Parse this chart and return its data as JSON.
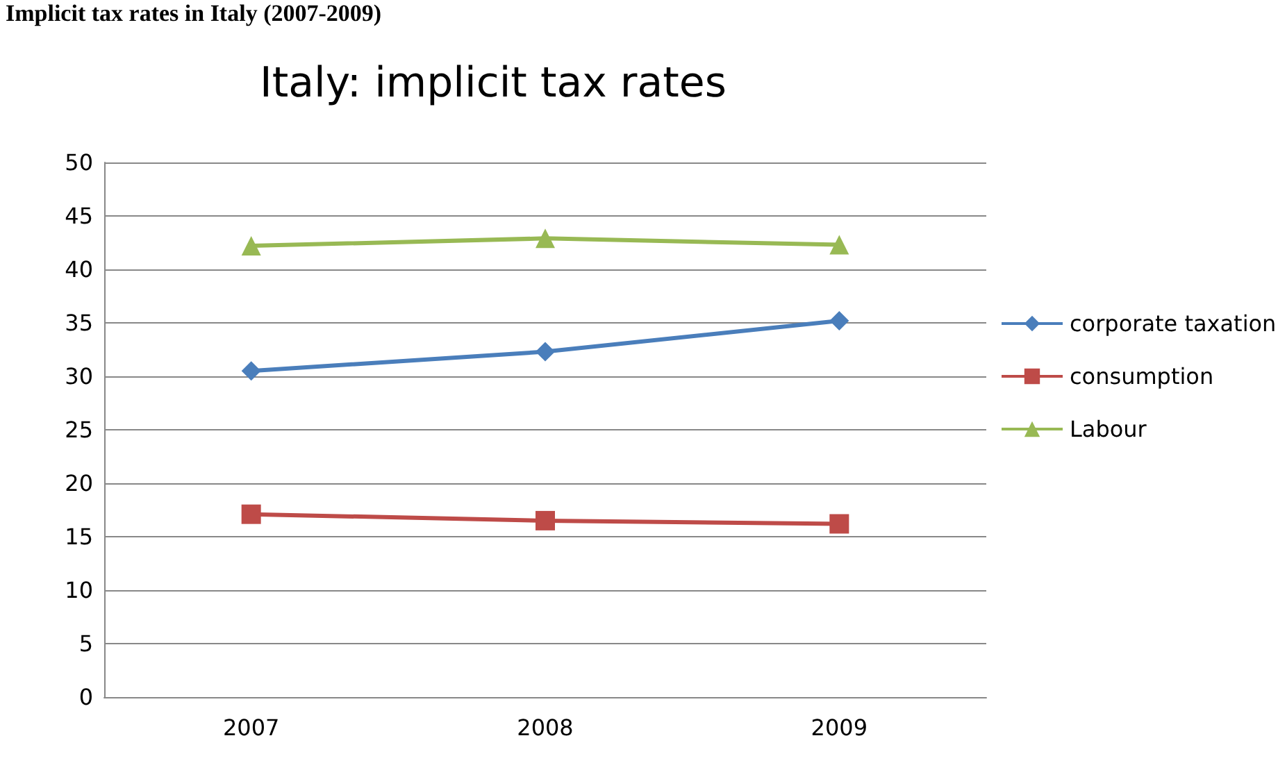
{
  "chart_data": {
    "type": "line",
    "title": "Italy: implicit tax rates",
    "annotations": [
      "Implicit tax rates in Italy (2007-2009)"
    ],
    "categories": [
      "2007",
      "2008",
      "2009"
    ],
    "series": [
      {
        "name": "corporate taxation",
        "color": "#4a7ebb",
        "values": [
          30.5,
          32.3,
          35.2
        ],
        "marker": "diamond"
      },
      {
        "name": "consumption",
        "color": "#be4b48",
        "values": [
          17.1,
          16.5,
          16.2
        ],
        "marker": "square"
      },
      {
        "name": "Labour",
        "color": "#98b954",
        "values": [
          42.2,
          42.9,
          42.3
        ],
        "marker": "triangle"
      }
    ],
    "ylim": [
      0,
      50
    ],
    "yticks": [
      0,
      5,
      10,
      15,
      20,
      25,
      30,
      35,
      40,
      45,
      50
    ],
    "grid": "y",
    "legend": "right"
  }
}
